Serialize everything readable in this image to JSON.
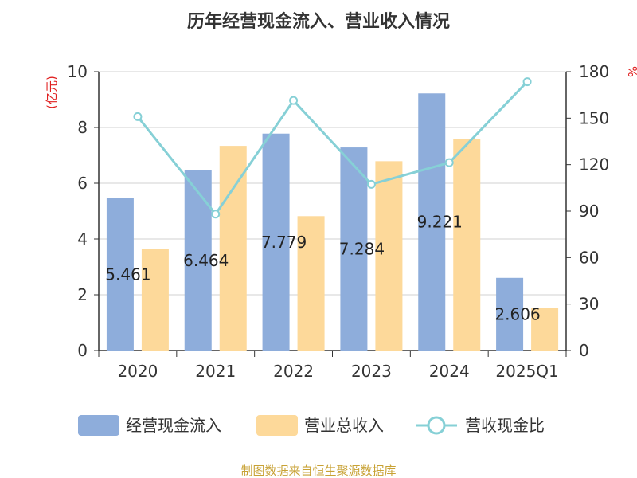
{
  "chart_data": {
    "type": "bar",
    "title": "历年经营现金流入、营业收入情况",
    "categories": [
      "2020",
      "2021",
      "2022",
      "2023",
      "2024",
      "2025Q1"
    ],
    "y_left": {
      "unit": "(亿元)",
      "range": [
        0,
        10
      ],
      "ticks": [
        "0",
        "2",
        "4",
        "6",
        "8",
        "10"
      ]
    },
    "y_right": {
      "unit": "%",
      "range": [
        0,
        180
      ],
      "ticks": [
        "0",
        "30",
        "60",
        "90",
        "120",
        "150",
        "180"
      ]
    },
    "series": [
      {
        "name": "经营现金流入",
        "kind": "bar",
        "axis": "left",
        "color": "#8eaddb",
        "values": [
          5.461,
          6.464,
          7.779,
          7.284,
          9.221,
          2.606
        ],
        "labels": [
          "5.461",
          "6.464",
          "7.779",
          "7.284",
          "9.221",
          "2.606"
        ]
      },
      {
        "name": "营业总收入",
        "kind": "bar",
        "axis": "left",
        "color": "#fdd99a",
        "values": [
          3.63,
          7.34,
          4.82,
          6.79,
          7.6,
          1.52
        ]
      },
      {
        "name": "营收现金比",
        "kind": "line",
        "axis": "right",
        "color": "#86d0d6",
        "values": [
          151,
          88.1,
          161.4,
          107.3,
          121.3,
          173.5
        ]
      }
    ],
    "grid": true,
    "legend_position": "bottom",
    "source": "制图数据来自恒生聚源数据库"
  }
}
